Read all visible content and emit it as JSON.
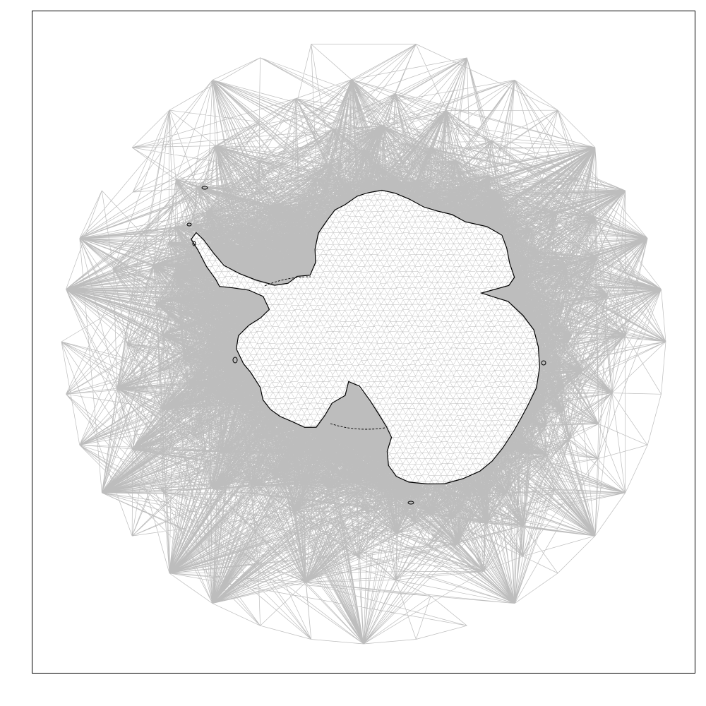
{
  "figure": {
    "kind": "triangular-mesh-map",
    "subject": "Antarctica",
    "title": "",
    "colors": {
      "background": "#ffffff",
      "frame": "#000000",
      "mesh": "#bdbdbd",
      "coastline": "#000000",
      "grounding_line": "#000000"
    },
    "mesh": {
      "domain": "circular",
      "density": "refined-near-coast"
    },
    "lines": {
      "coastline": "solid",
      "ice_shelf_front": "dashed"
    }
  }
}
